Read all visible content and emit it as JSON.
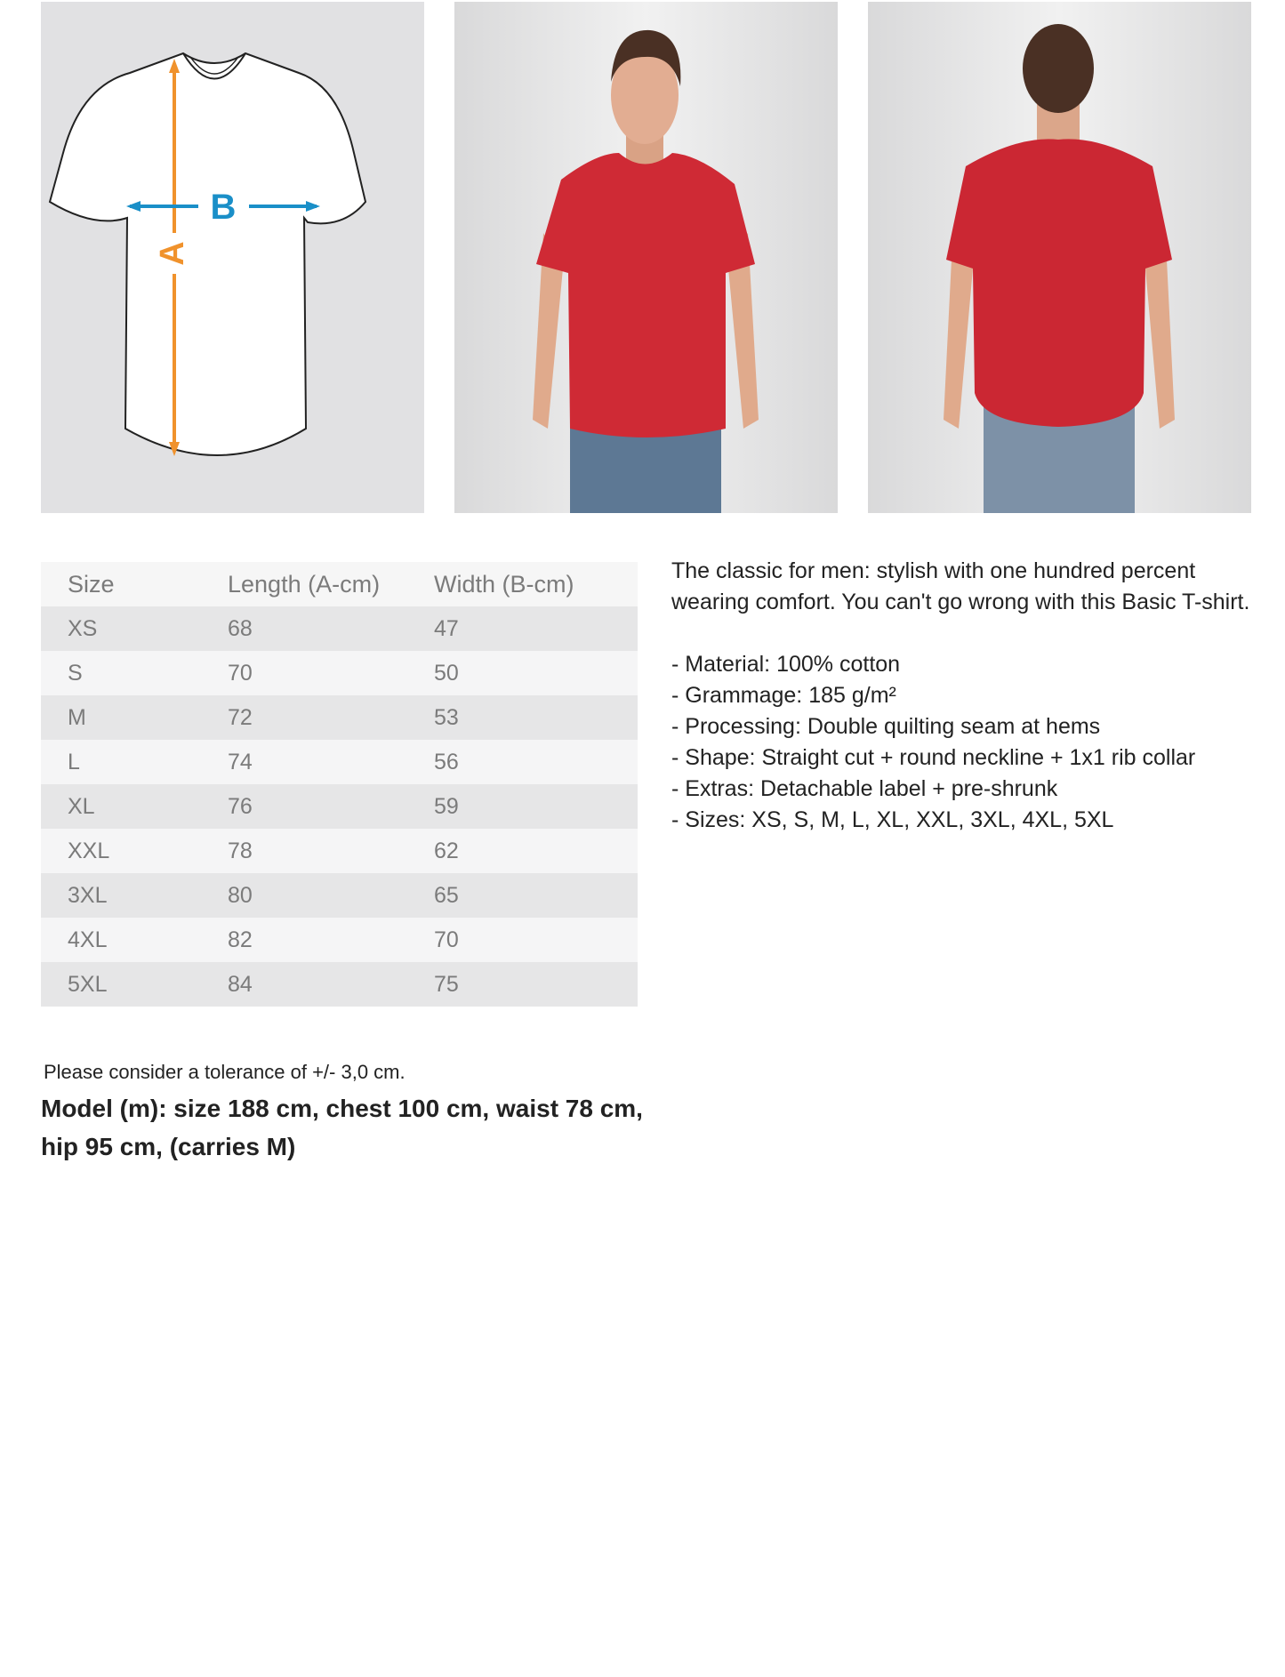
{
  "diagram": {
    "label_a": "A",
    "label_b": "B",
    "color_a": "#f0922c",
    "color_b": "#1a8fc8"
  },
  "photos": {
    "front": "model-front-photo",
    "back": "model-back-photo",
    "shirt_color": "#cf2a35"
  },
  "size_table": {
    "headers": [
      "Size",
      "Length (A-cm)",
      "Width (B-cm)"
    ],
    "rows": [
      [
        "XS",
        "68",
        "47"
      ],
      [
        "S",
        "70",
        "50"
      ],
      [
        "M",
        "72",
        "53"
      ],
      [
        "L",
        "74",
        "56"
      ],
      [
        "XL",
        "76",
        "59"
      ],
      [
        "XXL",
        "78",
        "62"
      ],
      [
        "3XL",
        "80",
        "65"
      ],
      [
        "4XL",
        "82",
        "70"
      ],
      [
        "5XL",
        "84",
        "75"
      ]
    ]
  },
  "description": {
    "intro": "The classic for men: stylish with one hundred percent wearing comfort. You can't go wrong with this Basic T-shirt.",
    "bullets": [
      "- Material: 100% cotton",
      "- Grammage: 185 g/m²",
      "- Processing: Double quilting seam at hems",
      "- Shape: Straight cut + round neckline + 1x1 rib collar",
      "- Extras: Detachable label + pre-shrunk",
      "- Sizes:  XS, S, M, L, XL, XXL, 3XL, 4XL, 5XL"
    ]
  },
  "tolerance": "Please consider a tolerance of +/- 3,0 cm.",
  "model_info": "Model (m): size 188 cm, chest 100 cm, waist 78 cm, hip 95 cm, (carries M)"
}
